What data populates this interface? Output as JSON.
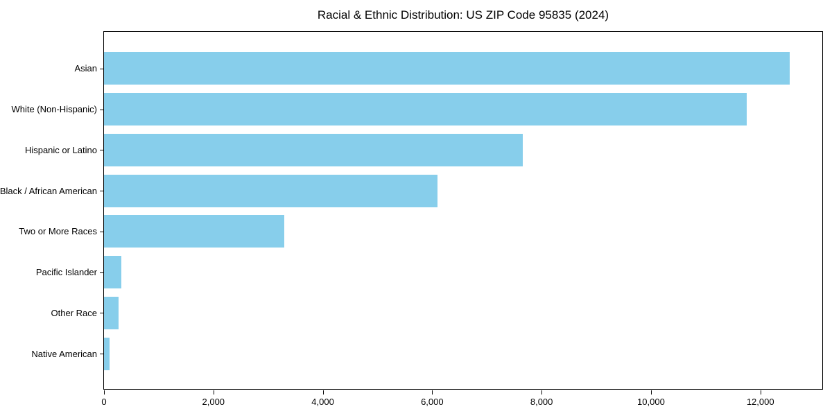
{
  "title": "Racial & Ethnic Distribution: US ZIP Code 95835 (2024)",
  "colors": {
    "bar": "#87CEEB",
    "axis": "#000000",
    "text": "#000000",
    "background": "#FFFFFF"
  },
  "chart_data": {
    "type": "bar",
    "orientation": "horizontal",
    "title": "Racial & Ethnic Distribution: US ZIP Code 95835 (2024)",
    "xlabel": "",
    "ylabel": "",
    "categories": [
      "Asian",
      "White (Non-Hispanic)",
      "Hispanic or Latino",
      "Black / African American",
      "Two or More Races",
      "Pacific Islander",
      "Other Race",
      "Native American"
    ],
    "values": [
      12530,
      11750,
      7660,
      6100,
      3290,
      320,
      265,
      105
    ],
    "xlim": [
      0,
      13157
    ],
    "x_ticks": [
      0,
      2000,
      4000,
      6000,
      8000,
      10000,
      12000
    ],
    "x_tick_labels": [
      "0",
      "2,000",
      "4,000",
      "6,000",
      "8,000",
      "10,000",
      "12,000"
    ],
    "bar_color": "#87CEEB",
    "grid": false,
    "legend": "none"
  }
}
